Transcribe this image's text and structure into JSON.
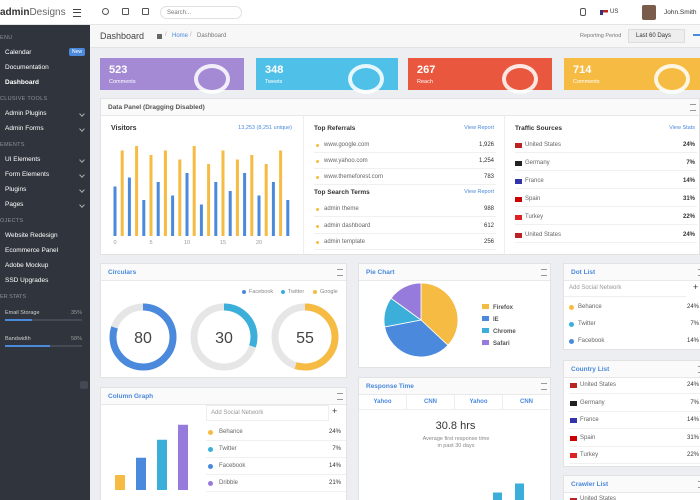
{
  "header": {
    "logo_bold": "admin",
    "logo_light": "Designs",
    "search_placeholder": "Search...",
    "language": "US",
    "user": "John.Smith"
  },
  "sidebar": {
    "sections": [
      {
        "title": "ENU",
        "items": [
          {
            "label": "Calendar",
            "badge": "New"
          },
          {
            "label": "Documentation"
          },
          {
            "label": "Dashboard"
          }
        ]
      },
      {
        "title": "CLUSIVE TOOLS",
        "items": [
          {
            "label": "Admin Plugins"
          },
          {
            "label": "Admin Forms"
          }
        ]
      },
      {
        "title": "EMENTS",
        "items": [
          {
            "label": "UI Elements"
          },
          {
            "label": "Form Elements"
          },
          {
            "label": "Plugins"
          },
          {
            "label": "Pages"
          }
        ]
      },
      {
        "title": "OJECTS",
        "items": [
          {
            "label": "Website Redesign"
          },
          {
            "label": "Ecommerce Panel"
          },
          {
            "label": "Adobe Mockup"
          },
          {
            "label": "SSD Upgrades"
          }
        ]
      }
    ],
    "stats": {
      "title": "ER STATS",
      "items": [
        {
          "label": "Email Storage",
          "value": 35,
          "value_label": "35%"
        },
        {
          "label": "Bandwidth",
          "value": 58,
          "value_label": "58%"
        }
      ]
    }
  },
  "breadcrumb": {
    "title": "Dashboard",
    "items": [
      "Home",
      "Dashboard"
    ],
    "period_label": "Reporting Period",
    "period": "Last 60 Days"
  },
  "tiles": [
    {
      "value": 523,
      "label": "Comments",
      "color": "#a48ad4"
    },
    {
      "value": 348,
      "label": "Tweets",
      "color": "#4fc1e9"
    },
    {
      "value": 267,
      "label": "Reach",
      "color": "#e9573f"
    },
    {
      "value": 714,
      "label": "Comments",
      "color": "#f6bb42"
    }
  ],
  "data_panel": {
    "title": "Data Panel (Dragging Disabled)",
    "visitors": {
      "title": "Visitors",
      "summary": "13,253 (8,251 unique)",
      "chart": {
        "type": "bar",
        "ylim": [
          0,
          100
        ],
        "xticks": [
          0,
          5,
          10,
          15,
          20
        ],
        "values": [
          55,
          95,
          65,
          100,
          40,
          90,
          60,
          95,
          45,
          85,
          70,
          100,
          35,
          80,
          60,
          95,
          50,
          85,
          70,
          90,
          45,
          80,
          60,
          95,
          40
        ],
        "colors": [
          "#4a89dc",
          "#f6bb42",
          "#4a89dc",
          "#f6bb42",
          "#4a89dc",
          "#f6bb42",
          "#4a89dc",
          "#f6bb42",
          "#4a89dc",
          "#f6bb42",
          "#4a89dc",
          "#f6bb42",
          "#4a89dc",
          "#f6bb42",
          "#4a89dc",
          "#f6bb42",
          "#4a89dc",
          "#f6bb42",
          "#4a89dc",
          "#f6bb42",
          "#4a89dc",
          "#f6bb42",
          "#4a89dc",
          "#f6bb42",
          "#4a89dc"
        ]
      }
    },
    "referrals": {
      "title": "Top Referrals",
      "action": "View Report",
      "rows": [
        {
          "label": "www.google.com",
          "value": "1,926"
        },
        {
          "label": "www.yahoo.com",
          "value": "1,254"
        },
        {
          "label": "www.themeforest.com",
          "value": "783"
        }
      ]
    },
    "search_terms": {
      "title": "Top Search Terms",
      "action": "View Report",
      "rows": [
        {
          "label": "admin theme",
          "value": "988"
        },
        {
          "label": "admin dashboard",
          "value": "612"
        },
        {
          "label": "admin template",
          "value": "256"
        }
      ]
    },
    "traffic": {
      "title": "Traffic Sources",
      "action": "View Stats",
      "rows": [
        {
          "label": "United States",
          "value": "24%"
        },
        {
          "label": "Germany",
          "value": "7%"
        },
        {
          "label": "France",
          "value": "14%"
        },
        {
          "label": "Spain",
          "value": "31%"
        },
        {
          "label": "Turkey",
          "value": "22%"
        },
        {
          "label": "United States",
          "value": "24%"
        }
      ]
    }
  },
  "circulars": {
    "title": "Circulars",
    "legend": [
      {
        "name": "Facebook",
        "color": "#4a89dc"
      },
      {
        "name": "Twitter",
        "color": "#3bafda"
      },
      {
        "name": "Google",
        "color": "#f6bb42"
      }
    ],
    "values": [
      80,
      30,
      55
    ]
  },
  "pie_chart": {
    "title": "Pie Chart",
    "chart": {
      "type": "pie",
      "categories": [
        "Firefox",
        "IE",
        "Chrome",
        "Safari"
      ],
      "values": [
        37,
        35,
        13,
        15
      ],
      "colors": [
        "#f6bb42",
        "#4a89dc",
        "#3bafda",
        "#967adc"
      ]
    }
  },
  "dot_list": {
    "title": "Dot List",
    "placeholder": "Add Social Network",
    "add": "+",
    "rows": [
      {
        "label": "Behance",
        "value": "24%",
        "color": "#f6bb42"
      },
      {
        "label": "Twitter",
        "value": "7%",
        "color": "#3bafda"
      },
      {
        "label": "Facebook",
        "value": "14%",
        "color": "#4a89dc"
      }
    ]
  },
  "country_list": {
    "title": "Country List",
    "rows": [
      {
        "label": "United States",
        "value": "24%"
      },
      {
        "label": "Germany",
        "value": "7%"
      },
      {
        "label": "France",
        "value": "14%"
      },
      {
        "label": "Spain",
        "value": "31%"
      },
      {
        "label": "Turkey",
        "value": "22%"
      }
    ]
  },
  "crawler_list": {
    "title": "Crawler List",
    "rows": [
      {
        "label": "United States"
      }
    ]
  },
  "column_graph": {
    "title": "Column Graph",
    "chart": {
      "type": "bar",
      "ylim": [
        0,
        100
      ],
      "values": [
        20,
        43,
        67,
        87
      ],
      "colors": [
        "#f6bb42",
        "#4a89dc",
        "#3bafda",
        "#967adc"
      ]
    },
    "placeholder": "Add Social Network",
    "add": "+",
    "rows": [
      {
        "label": "Behance",
        "value": "24%",
        "color": "#f6bb42"
      },
      {
        "label": "Twitter",
        "value": "7%",
        "color": "#3bafda"
      },
      {
        "label": "Facebook",
        "value": "14%",
        "color": "#4a89dc"
      },
      {
        "label": "Dribble",
        "value": "21%",
        "color": "#967adc"
      }
    ]
  },
  "response_time": {
    "title": "Response Time",
    "tabs": [
      "Yahoo",
      "CNN",
      "Yahoo",
      "CNN"
    ],
    "value": "30.8 hrs",
    "caption": "Average first response time in past 30 days",
    "chart": {
      "type": "bar",
      "ylim": [
        0,
        40
      ],
      "values": [
        10,
        22
      ],
      "colors": [
        "#3bafda",
        "#3bafda"
      ]
    }
  }
}
